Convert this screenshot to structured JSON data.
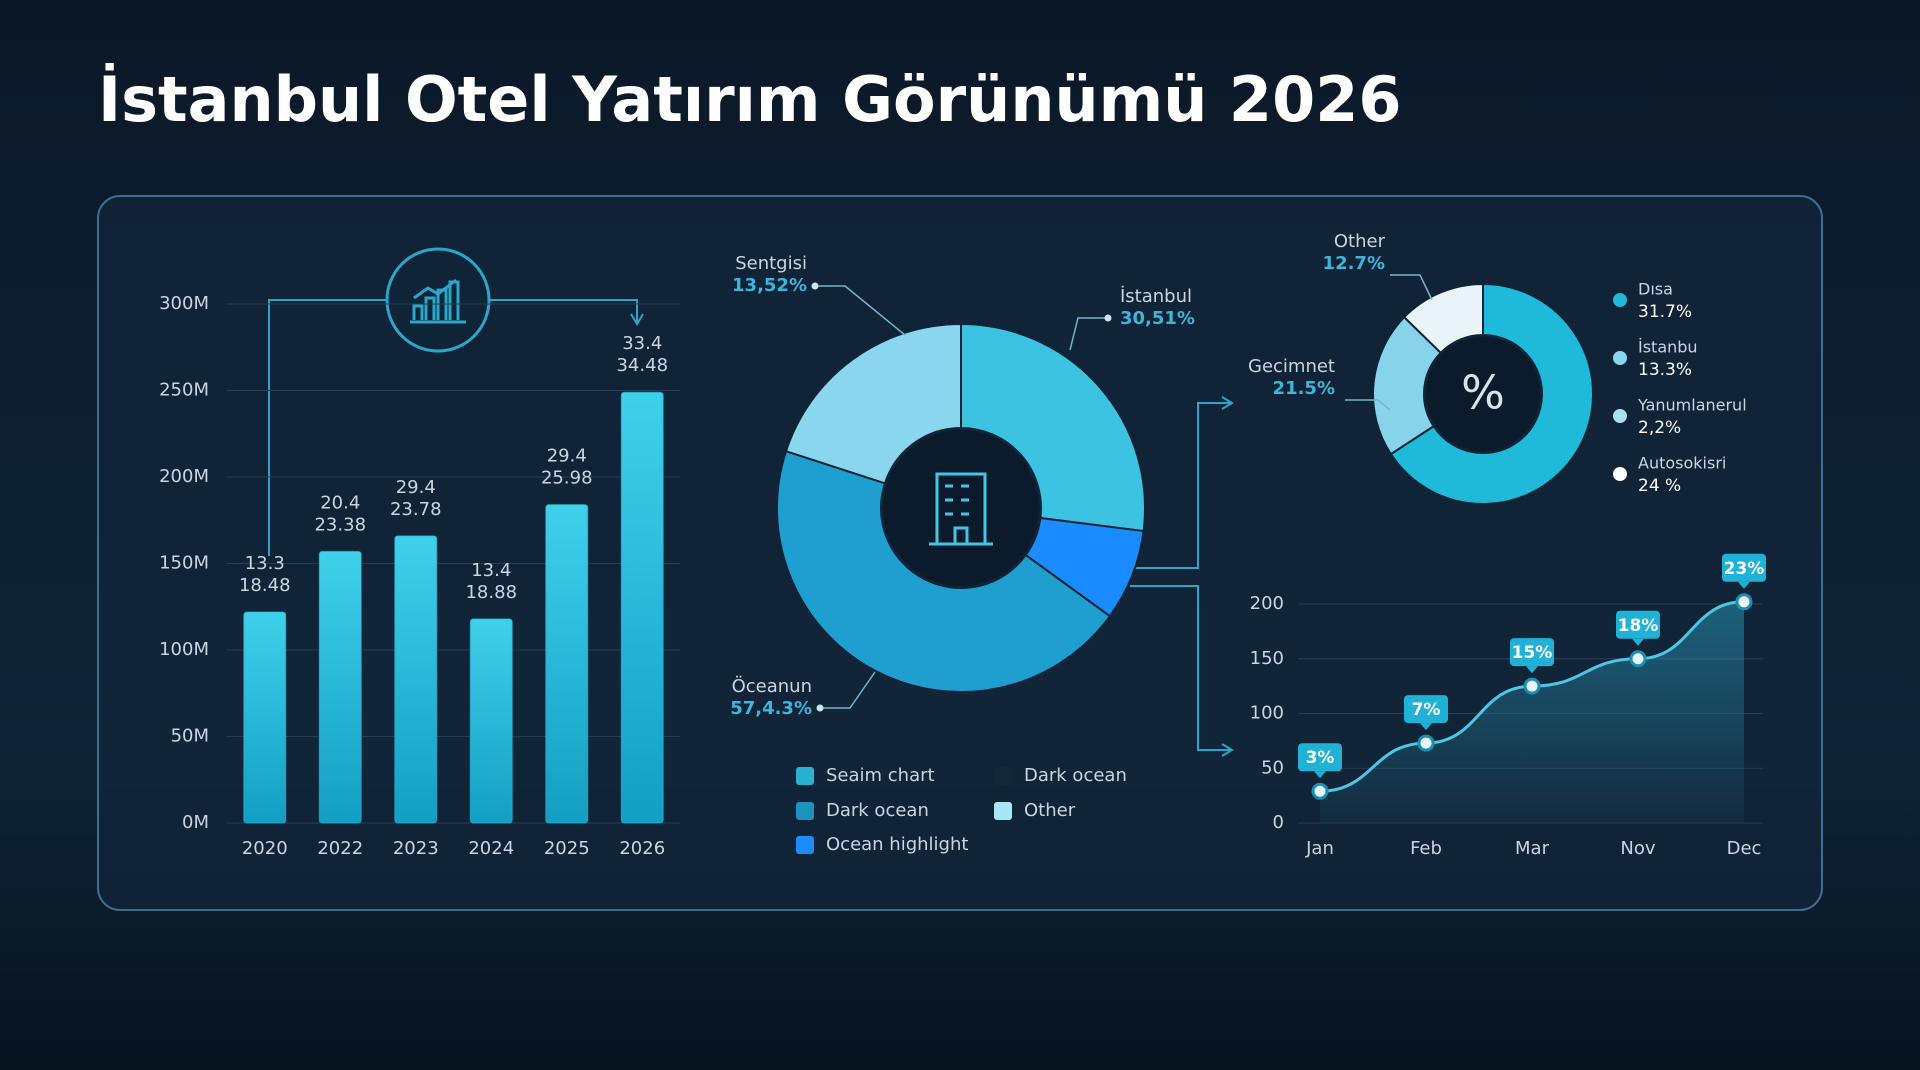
{
  "title": "İstanbul Otel Yatırım Görünümü 2026",
  "chart_data": [
    {
      "type": "bar",
      "categories": [
        "2020",
        "2022",
        "2023",
        "2024",
        "2025",
        "2026"
      ],
      "values": [
        122,
        157,
        166,
        118,
        184,
        249
      ],
      "annotations": [
        [
          "13.3",
          "18.48"
        ],
        [
          "20.4",
          "23.38"
        ],
        [
          "29.4",
          "23.78"
        ],
        [
          "13.4",
          "18.88"
        ],
        [
          "29.4",
          "25.98"
        ],
        [
          "33.4",
          "34.48"
        ]
      ],
      "color": "#1fb9d9",
      "ylim": [
        0,
        300
      ],
      "yticks": [
        {
          "value": 0,
          "label": "0M"
        },
        {
          "value": 50,
          "label": "50M"
        },
        {
          "value": 100,
          "label": "100M"
        },
        {
          "value": 150,
          "label": "150M"
        },
        {
          "value": 200,
          "label": "200M"
        },
        {
          "value": 250,
          "label": "250M"
        },
        {
          "value": 300,
          "label": "300M"
        }
      ],
      "grid": true
    },
    {
      "type": "donut",
      "values": [
        27,
        8,
        45,
        20
      ],
      "colors": [
        "#3cc3e2",
        "#1a8cff",
        "#1e9fcf",
        "#8ad6ee"
      ],
      "callouts": [
        {
          "label": "İstanbul",
          "text": "30,51%"
        },
        {
          "label": "Öceanun",
          "text": "57,4.3%"
        },
        {
          "label": "Sentgisi",
          "text": "13,52%"
        }
      ],
      "legend": [
        {
          "name": "Seaim chart",
          "color": "#2ab0d2"
        },
        {
          "name": "Dark ocean",
          "color": "#1a93bf"
        },
        {
          "name": "Ocean highlight",
          "color": "#1a8cff"
        },
        {
          "name": "Dark ocean",
          "color": "#12293a"
        },
        {
          "name": "Other",
          "color": "#a8e6f5"
        }
      ]
    },
    {
      "type": "donut",
      "values": [
        65.8,
        21.5,
        12.7
      ],
      "colors": [
        "#1fb9d9",
        "#86d3ea",
        "#e8f4f8"
      ],
      "categories": [
        null,
        "Gecimnet",
        "Other"
      ],
      "value_labels": [
        null,
        "21.5%",
        "12.7%"
      ],
      "center_label": "%",
      "legend": [
        {
          "name": "Dısa",
          "text": "31.7%",
          "color": "#1fb9d9"
        },
        {
          "name": "İstanbu",
          "text": "13.3%",
          "color": "#8ad6ee"
        },
        {
          "name": "Yanumlanerul",
          "text": "2,2%",
          "color": "#a8e0f0"
        },
        {
          "name": "Autosokisri",
          "text": "24 %",
          "color": "#ffffff"
        }
      ]
    },
    {
      "type": "line",
      "categories": [
        "Jan",
        "Feb",
        "Mar",
        "Nov",
        "Dec"
      ],
      "values": [
        29,
        73,
        125,
        150,
        202
      ],
      "annotations": [
        "3%",
        "7%",
        "15%",
        "18%",
        "23%"
      ],
      "color": "#4cc8e6",
      "ylim": [
        0,
        200
      ],
      "yticks": [
        0,
        50,
        100,
        150,
        200
      ],
      "grid": true
    }
  ]
}
